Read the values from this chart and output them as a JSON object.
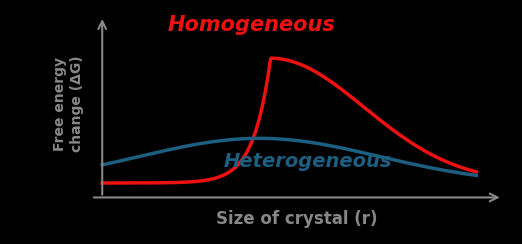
{
  "background_color": "#000000",
  "homogeneous_color": "#ee1111",
  "heterogeneous_color": "#1c5f80",
  "axis_color": "#888888",
  "label_color": "#888888",
  "xlabel": "Size of crystal (r)",
  "ylabel": "Free energy\nchange (ΔG)",
  "homogeneous_label": "Homogeneous",
  "heterogeneous_label": "Heterogeneous",
  "xlabel_fontsize": 12,
  "ylabel_fontsize": 10,
  "label_fontsize_homo": 15,
  "label_fontsize_hetero": 14,
  "figsize": [
    5.22,
    2.44
  ],
  "dpi": 100
}
